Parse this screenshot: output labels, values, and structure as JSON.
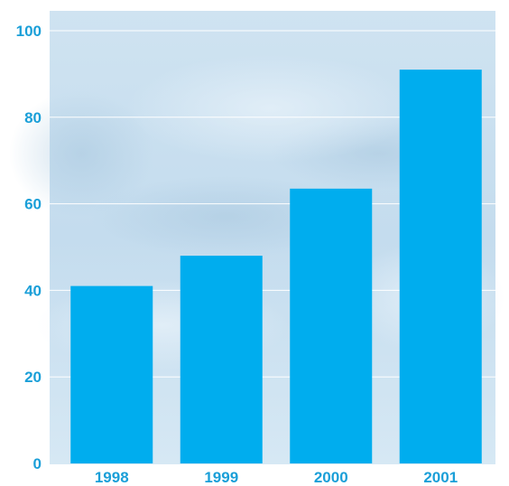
{
  "chart_data": {
    "type": "bar",
    "categories": [
      "1998",
      "1999",
      "2000",
      "2001"
    ],
    "values": [
      41,
      48,
      63.5,
      91
    ],
    "ylim": [
      0,
      100
    ],
    "yticks": [
      0,
      20,
      40,
      60,
      80,
      100
    ],
    "grid": true,
    "colors": {
      "bar": "#00adee",
      "label": "#1a9fd8",
      "grid": "#ffffff",
      "background_top": "#c7dff0",
      "background_bottom": "#d3e7f4"
    }
  }
}
